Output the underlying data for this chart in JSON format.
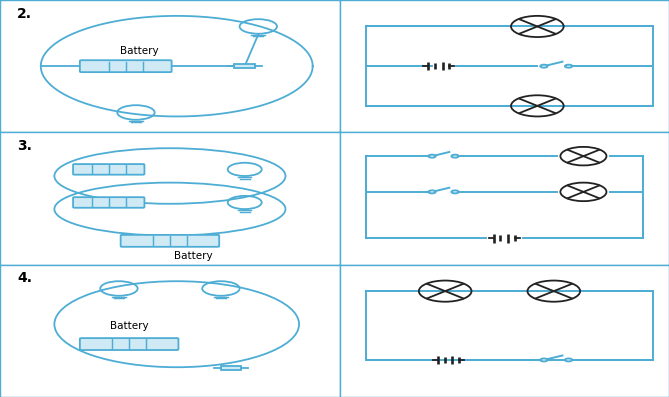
{
  "bg_color": "#ffffff",
  "line_color": "#4dadd4",
  "dark_color": "#222222",
  "grid_color": "#4dadd4",
  "row_labels": [
    "2.",
    "3.",
    "4."
  ],
  "lw": 1.4,
  "slw": 1.3,
  "label_fontsize": 10,
  "battery_label_fontsize": 7.5,
  "col_split": 0.508
}
